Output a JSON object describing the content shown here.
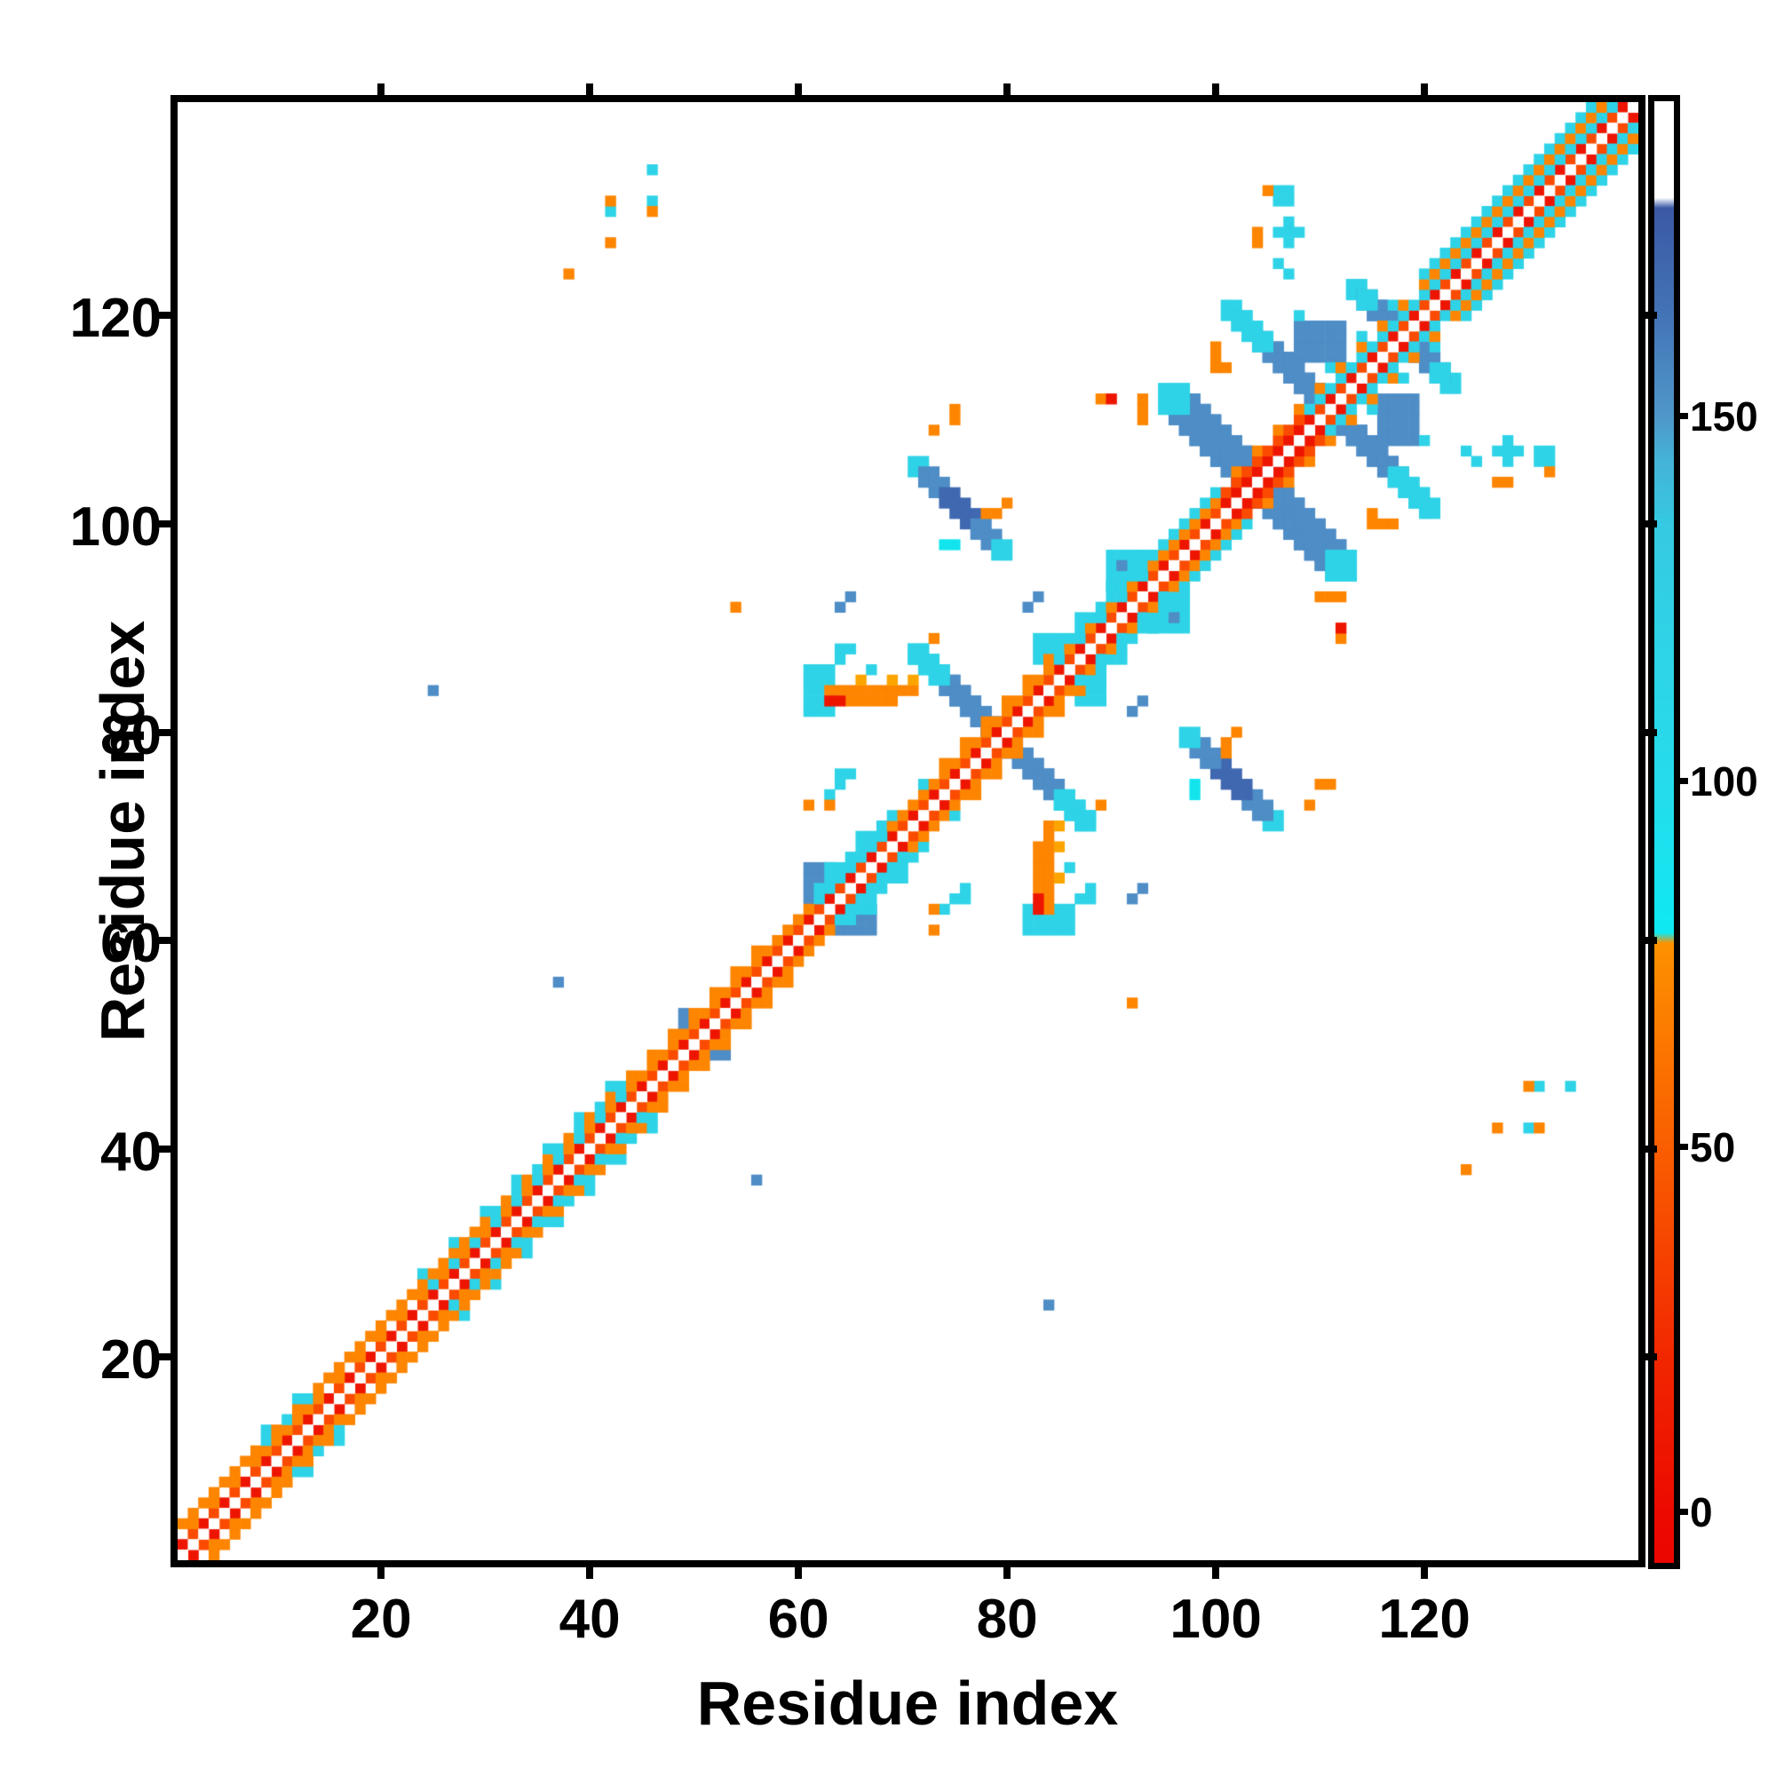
{
  "chart_data": {
    "type": "heatmap",
    "title": "",
    "xlabel": "Residue index",
    "ylabel": "Residue index",
    "n_residues": 140,
    "axis_range": [
      0.5,
      140.5
    ],
    "axis_ticks": [
      20,
      40,
      60,
      80,
      100,
      120
    ],
    "grid": false,
    "legend_position": "none",
    "colorbar": {
      "position": "right",
      "ticks": [
        0,
        50,
        100,
        150
      ],
      "value_range": [
        -7,
        193
      ],
      "gradient_stops": [
        [
          0.0,
          "#ffffff"
        ],
        [
          6.6,
          "#ffffff"
        ],
        [
          7.3,
          "#3b59a5"
        ],
        [
          14.0,
          "#4271b4"
        ],
        [
          21.6,
          "#4f97ca"
        ],
        [
          24.5,
          "#45b2d7"
        ],
        [
          29.0,
          "#35c9e2"
        ],
        [
          37.0,
          "#2fd3e7"
        ],
        [
          47.0,
          "#25dcec"
        ],
        [
          56.9,
          "#0fe9f1"
        ],
        [
          57.6,
          "#fd9100"
        ],
        [
          66.5,
          "#fb7000"
        ],
        [
          76.5,
          "#f74c00"
        ],
        [
          86.5,
          "#f12500"
        ],
        [
          96.5,
          "#ec0a00"
        ],
        [
          100.0,
          "#eb0600"
        ]
      ]
    },
    "palette": {
      "red": "#ee1500",
      "orangered": "#fb4b00",
      "orange": "#fd8500",
      "amber": "#fca400",
      "cyan": "#2ed3e7",
      "brightcyan": "#12e4ee",
      "steelblue": "#4e8dc6",
      "slate": "#3f68b0",
      "background": "#ffffff"
    },
    "band": {
      "offset1_alt": [
        "red",
        "orangered"
      ],
      "segments": [
        {
          "from": 1,
          "to": 8,
          "o2": "orange-sparse",
          "o3": "orange",
          "o4": "none"
        },
        {
          "from": 9,
          "to": 13,
          "o2": "orange",
          "o3": "cyan-checker",
          "o4": "cyan-sparse"
        },
        {
          "from": 14,
          "to": 23,
          "o2": "orange-sparse",
          "o3": "orange",
          "o4": "none"
        },
        {
          "from": 24,
          "to": 29,
          "o2": "cyan-checker",
          "o3": "orange",
          "o4": "cyan-sparse"
        },
        {
          "from": 30,
          "to": 44,
          "o2": "cyan-checker",
          "o3": "cyan-checker",
          "o4": "cyan-sparse"
        },
        {
          "from": 45,
          "to": 57,
          "o2": "orange",
          "o3": "orange-sparse",
          "o4": "none"
        },
        {
          "from": 58,
          "to": 61,
          "o2": "orange",
          "o3": "none",
          "o4": "none"
        },
        {
          "from": 62,
          "to": 68,
          "o2": "cyan",
          "o3": "cyan",
          "o4": "cyan-sparse"
        },
        {
          "from": 69,
          "to": 73,
          "o2": "orange",
          "o3": "cyan-sparse",
          "o4": "none"
        },
        {
          "from": 74,
          "to": 84,
          "o2": "orange",
          "o3": "orange-sparse",
          "o4": "none"
        },
        {
          "from": 85,
          "to": 94,
          "o2": "cyan-checker",
          "o3": "cyan",
          "o4": "cyan-sparse"
        },
        {
          "from": 95,
          "to": 100,
          "o2": "orange",
          "o3": "cyan",
          "o4": "none"
        },
        {
          "from": 101,
          "to": 108,
          "o1": "red",
          "o2": "orangered",
          "o3": "orange-sparse",
          "o4": "none"
        },
        {
          "from": 109,
          "to": 120,
          "o2": "cyan",
          "o3": "orange-sparse",
          "o4": "cyan-sparse"
        },
        {
          "from": 121,
          "to": 139,
          "o2": "cyan",
          "o3": "orange",
          "o4": "cyan"
        }
      ]
    },
    "features": [
      {
        "type": "antidiag",
        "ci": 79,
        "cj": 79,
        "half": 8,
        "th": 2,
        "core_half": 5
      },
      {
        "type": "antidiag",
        "ci": 104,
        "cj": 104,
        "half": 8,
        "th": 3,
        "core_half": 7
      },
      {
        "type": "antidiag",
        "ci": 110,
        "cj": 111,
        "half": 9,
        "th": 2,
        "core_half": 6
      },
      {
        "type": "antidiag",
        "ci": 117,
        "cj": 118,
        "half": 4,
        "th": 2,
        "core_half": 3
      },
      {
        "type": "antidiag",
        "ci": 75,
        "cj": 101,
        "half": 4,
        "th": 2,
        "core_half": 3
      },
      {
        "type": "rect",
        "color": "cyan",
        "i0": 61,
        "i1": 63,
        "j0": 82,
        "j1": 86
      },
      {
        "type": "rect",
        "color": "cyan",
        "i0": 83,
        "i1": 85,
        "j0": 87,
        "j1": 89
      },
      {
        "type": "rect",
        "color": "cyan",
        "i0": 90,
        "i1": 93,
        "j0": 94,
        "j1": 97
      },
      {
        "type": "rect",
        "color": "steelblue",
        "i0": 61,
        "i1": 63,
        "j0": 64,
        "j1": 67
      },
      {
        "type": "rect",
        "color": "steelblue",
        "i0": 108,
        "i1": 112,
        "j0": 116,
        "j1": 119
      },
      {
        "type": "hline",
        "color": "orange",
        "j": 84,
        "i0": 63,
        "i1": 71
      },
      {
        "type": "hline",
        "color": "orange",
        "j": 83,
        "i0": 65,
        "i1": 69
      },
      {
        "type": "cells",
        "color": "steelblue",
        "cells": [
          [
            25,
            84
          ],
          [
            37,
            56
          ],
          [
            49,
            52
          ],
          [
            49,
            53
          ],
          [
            64,
            92
          ],
          [
            65,
            93
          ],
          [
            82,
            92
          ],
          [
            83,
            93
          ],
          [
            91,
            96
          ],
          [
            122,
            125
          ],
          [
            123,
            126
          ]
        ]
      },
      {
        "type": "cells",
        "color": "cyan",
        "cells": [
          [
            42,
            130
          ],
          [
            46,
            131
          ],
          [
            46,
            134
          ],
          [
            64,
            87
          ],
          [
            64,
            88
          ],
          [
            65,
            88
          ],
          [
            63,
            74
          ],
          [
            64,
            75
          ],
          [
            64,
            76
          ],
          [
            65,
            76
          ],
          [
            67,
            86
          ],
          [
            106,
            125
          ],
          [
            106,
            131
          ],
          [
            106,
            132
          ],
          [
            107,
            131
          ],
          [
            107,
            132
          ],
          [
            107,
            124
          ],
          [
            106,
            128
          ],
          [
            107,
            127
          ],
          [
            107,
            128
          ],
          [
            107,
            129
          ],
          [
            108,
            128
          ],
          [
            108,
            120
          ],
          [
            112,
            115
          ]
        ]
      },
      {
        "type": "cells",
        "color": "brightcyan",
        "cells": [
          [
            74,
            98
          ],
          [
            75,
            98
          ]
        ]
      },
      {
        "type": "cells",
        "color": "orange",
        "cells": [
          [
            38,
            124
          ],
          [
            42,
            127
          ],
          [
            42,
            131
          ],
          [
            46,
            130
          ],
          [
            104,
            127
          ],
          [
            104,
            128
          ],
          [
            105,
            132
          ],
          [
            54,
            92
          ],
          [
            61,
            73
          ],
          [
            63,
            73
          ],
          [
            73,
            89
          ],
          [
            78,
            101
          ],
          [
            79,
            101
          ],
          [
            80,
            102
          ],
          [
            89,
            112
          ],
          [
            93,
            110
          ],
          [
            93,
            111
          ],
          [
            93,
            112
          ],
          [
            100,
            115
          ],
          [
            100,
            116
          ],
          [
            100,
            117
          ],
          [
            101,
            115
          ],
          [
            73,
            109
          ],
          [
            75,
            110
          ],
          [
            75,
            111
          ]
        ]
      },
      {
        "type": "cells",
        "color": "red",
        "cells": [
          [
            63,
            83
          ],
          [
            64,
            83
          ],
          [
            90,
            112
          ]
        ]
      },
      {
        "type": "cells",
        "color": "amber",
        "cells": [
          [
            66,
            85
          ],
          [
            69,
            85
          ],
          [
            71,
            85
          ]
        ]
      }
    ]
  }
}
